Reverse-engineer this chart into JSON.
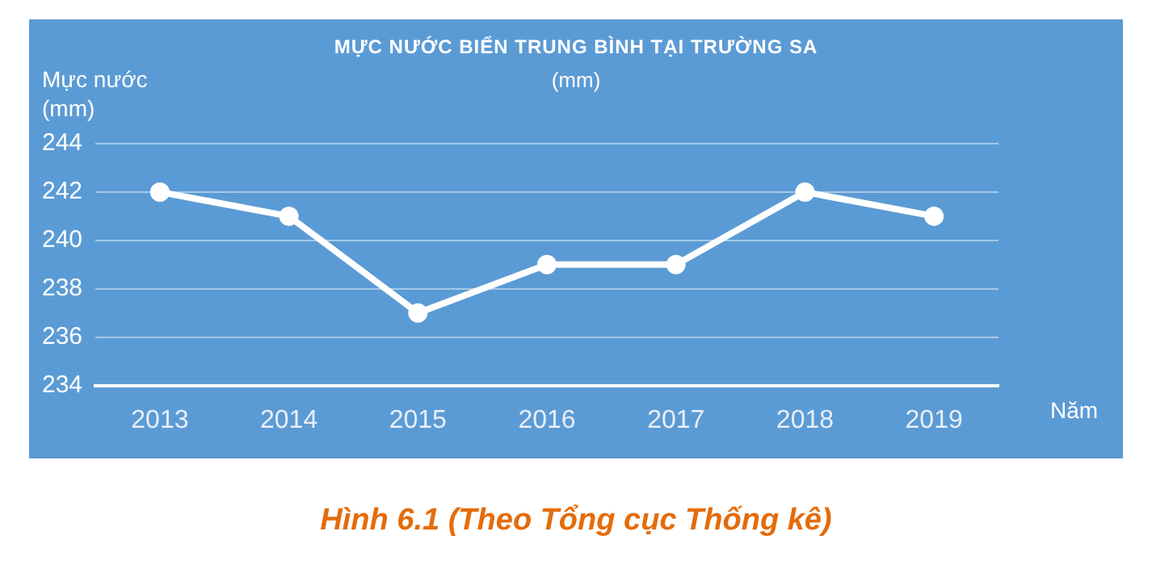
{
  "chart_data": {
    "type": "line",
    "title": "MỰC NƯỚC BIỂN TRUNG BÌNH TẠI TRƯỜNG SA",
    "subtitle": "(mm)",
    "ylabel": "Mực nước (mm)",
    "xlabel": "Năm",
    "categories": [
      "2013",
      "2014",
      "2015",
      "2016",
      "2017",
      "2018",
      "2019"
    ],
    "series": [
      {
        "color": "#ffffff",
        "values": [
          242,
          241,
          237,
          239,
          239,
          242,
          241
        ]
      }
    ],
    "ylim": [
      234,
      244
    ],
    "yticks": [
      234,
      236,
      238,
      240,
      242,
      244
    ],
    "grid": "y",
    "marker": "circle",
    "line_style": "solid",
    "legend": false,
    "annotations": [
      "Hình 6.1 (Theo Tổng cục Thống kê)"
    ]
  }
}
